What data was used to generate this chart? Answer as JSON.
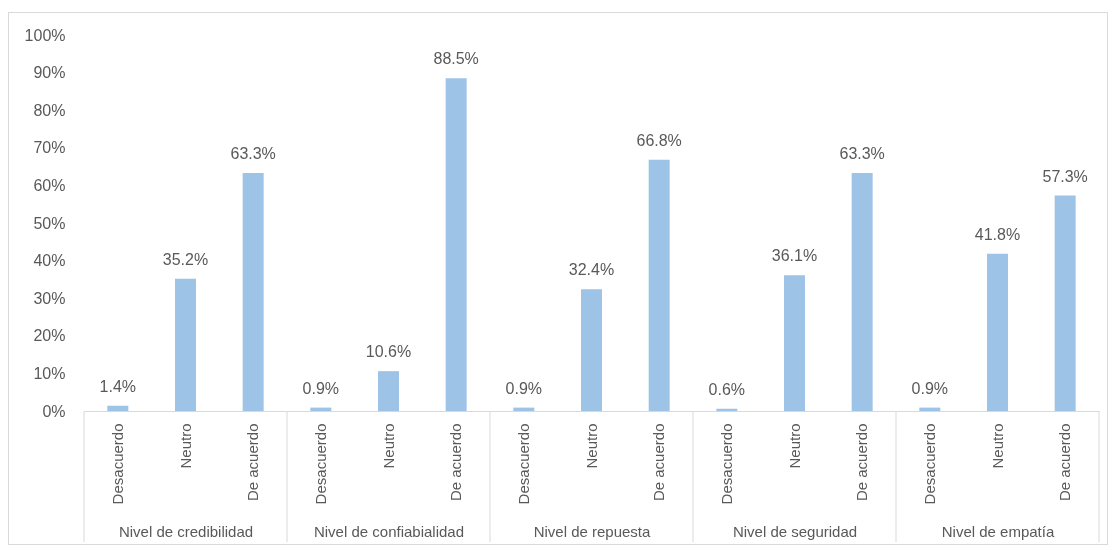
{
  "chart_data": [
    {
      "type": "bar",
      "categories": [
        "Desacuerdo",
        "Neutro",
        "De acuerdo"
      ],
      "values": [
        1.4,
        35.2,
        63.3
      ],
      "value_labels": [
        "1.4%",
        "35.2%",
        "63.3%"
      ],
      "color": "#9dc3e6",
      "xlabel": "Nivel de credibilidad",
      "ylim": [
        0,
        100
      ],
      "yticks": [
        {
          "value": 0,
          "label": "0%"
        },
        {
          "value": 10,
          "label": "10%"
        },
        {
          "value": 20,
          "label": "20%"
        },
        {
          "value": 30,
          "label": "30%"
        },
        {
          "value": 40,
          "label": "40%"
        },
        {
          "value": 50,
          "label": "50%"
        },
        {
          "value": 60,
          "label": "60%"
        },
        {
          "value": 70,
          "label": "70%"
        },
        {
          "value": 80,
          "label": "80%"
        },
        {
          "value": 90,
          "label": "90%"
        },
        {
          "value": 100,
          "label": "100%"
        }
      ]
    },
    {
      "type": "bar",
      "categories": [
        "Desacuerdo",
        "Neutro",
        "De acuerdo"
      ],
      "values": [
        0.9,
        10.6,
        88.5
      ],
      "value_labels": [
        "0.9%",
        "10.6%",
        "88.5%"
      ],
      "color": "#9dc3e6",
      "xlabel": "Nivel de confiabialidad",
      "ylim": [
        0,
        100
      ],
      "tick_labels": "x"
    },
    {
      "type": "bar",
      "categories": [
        "Desacuerdo",
        "Neutro",
        "De acuerdo"
      ],
      "values": [
        0.9,
        32.4,
        66.8
      ],
      "value_labels": [
        "0.9%",
        "32.4%",
        "66.8%"
      ],
      "color": "#9dc3e6",
      "xlabel": "Nivel de repuesta",
      "ylim": [
        0,
        100
      ],
      "tick_labels": "x"
    },
    {
      "type": "bar",
      "categories": [
        "Desacuerdo",
        "Neutro",
        "De acuerdo"
      ],
      "values": [
        0.6,
        36.1,
        63.3
      ],
      "value_labels": [
        "0.6%",
        "36.1%",
        "63.3%"
      ],
      "color": "#9dc3e6",
      "xlabel": "Nivel de seguridad",
      "ylim": [
        0,
        100
      ],
      "tick_labels": "x"
    },
    {
      "type": "bar",
      "categories": [
        "Desacuerdo",
        "Neutro",
        "De acuerdo"
      ],
      "values": [
        0.9,
        41.8,
        57.3
      ],
      "value_labels": [
        "0.9%",
        "41.8%",
        "57.3%"
      ],
      "color": "#9dc3e6",
      "xlabel": "Nivel de empatía",
      "ylim": [
        0,
        100
      ],
      "tick_labels": "x"
    }
  ]
}
